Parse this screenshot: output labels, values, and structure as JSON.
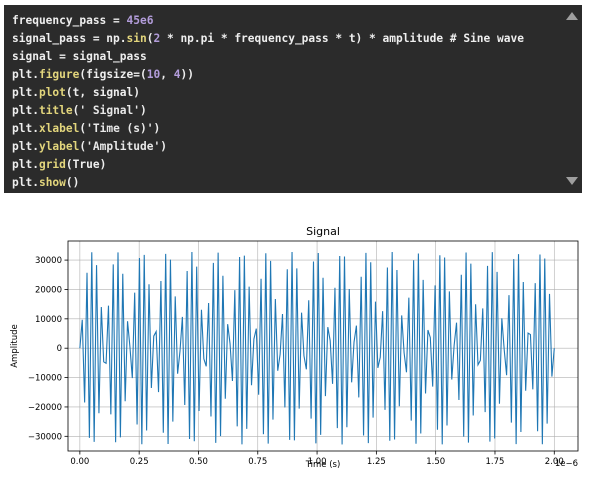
{
  "code": {
    "lines": [
      [
        {
          "t": "frequency_pass = "
        },
        {
          "t": "45e6",
          "c": "num"
        }
      ],
      [
        {
          "t": "signal_pass = np."
        },
        {
          "t": "sin",
          "c": "fn"
        },
        {
          "t": "("
        },
        {
          "t": "2",
          "c": "num"
        },
        {
          "t": " * np.pi * frequency_pass * t) * amplitude # Sine wave"
        }
      ],
      [
        {
          "t": "signal = signal_pass"
        }
      ],
      [
        {
          "t": "plt."
        },
        {
          "t": "figure",
          "c": "fn"
        },
        {
          "t": "(figsize=("
        },
        {
          "t": "10",
          "c": "num"
        },
        {
          "t": ", "
        },
        {
          "t": "4",
          "c": "num"
        },
        {
          "t": "))"
        }
      ],
      [
        {
          "t": "plt."
        },
        {
          "t": "plot",
          "c": "fn"
        },
        {
          "t": "(t, signal)"
        }
      ],
      [
        {
          "t": "plt."
        },
        {
          "t": "title",
          "c": "fn"
        },
        {
          "t": "("
        },
        {
          "t": "' Signal'",
          "c": "str"
        },
        {
          "t": ")"
        }
      ],
      [
        {
          "t": "plt."
        },
        {
          "t": "xlabel",
          "c": "fn"
        },
        {
          "t": "("
        },
        {
          "t": "'Time (s)'",
          "c": "str"
        },
        {
          "t": ")"
        }
      ],
      [
        {
          "t": "plt."
        },
        {
          "t": "ylabel",
          "c": "fn"
        },
        {
          "t": "("
        },
        {
          "t": "'Amplitude'",
          "c": "str"
        },
        {
          "t": ")"
        }
      ],
      [
        {
          "t": "plt."
        },
        {
          "t": "grid",
          "c": "fn"
        },
        {
          "t": "(True)"
        }
      ],
      [
        {
          "t": "plt."
        },
        {
          "t": "show",
          "c": "fn"
        },
        {
          "t": "()"
        }
      ]
    ]
  },
  "chart_data": {
    "type": "line",
    "title": "Signal",
    "xlabel": "Time (s)",
    "ylabel": "Amplitude",
    "x_offset_label": "1e−6",
    "xlim": [
      -5e-08,
      2.1e-06
    ],
    "ylim": [
      -35000,
      36500
    ],
    "x_ticks": [
      0,
      0.25,
      0.5,
      0.75,
      1.0,
      1.25,
      1.5,
      1.75,
      2.0
    ],
    "x_tick_labels": [
      "0.00",
      "0.25",
      "0.50",
      "0.75",
      "1.00",
      "1.25",
      "1.50",
      "1.75",
      "2.00"
    ],
    "y_ticks": [
      -30000,
      -20000,
      -10000,
      0,
      10000,
      20000,
      30000
    ],
    "y_tick_labels": [
      "−30000",
      "−20000",
      "−10000",
      "0",
      "10000",
      "20000",
      "30000"
    ],
    "grid": true,
    "series": [
      {
        "color": "#1f77b4",
        "frequency_hz": 45000000,
        "amplitude": 32768,
        "t_start": 0,
        "t_end": 2e-06,
        "n_samples": 200
      }
    ]
  }
}
